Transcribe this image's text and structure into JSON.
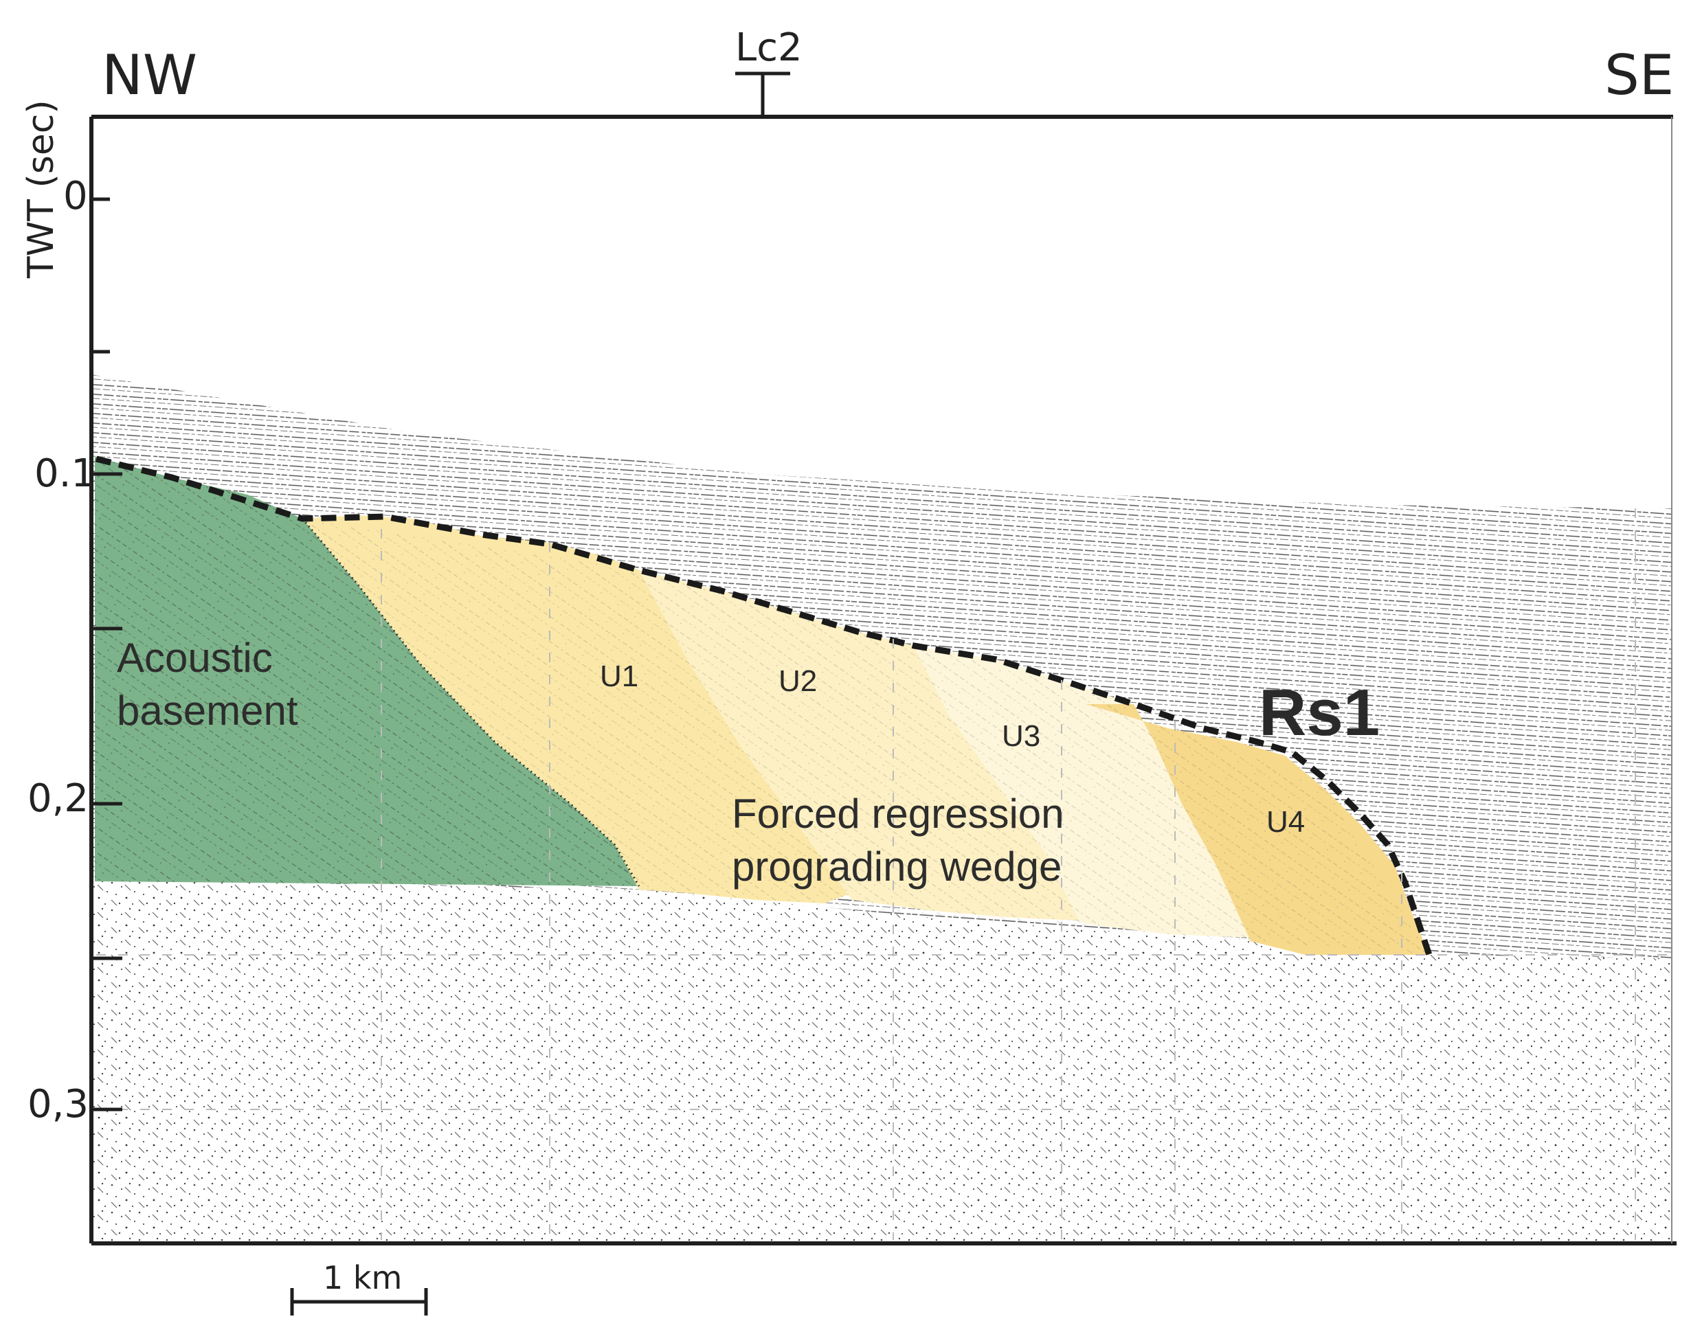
{
  "header": {
    "left_direction": "NW",
    "right_direction": "SE",
    "marker_label": "Lc2"
  },
  "axis": {
    "title": "TWT (sec)",
    "ticks": [
      "0",
      "0.1",
      "0,2",
      "0,3"
    ]
  },
  "units": {
    "basement": "Acoustic\nbasement",
    "basement_line1": "Acoustic",
    "basement_line2": "basement",
    "u1": "U1",
    "u2": "U2",
    "u3": "U3",
    "u4": "U4"
  },
  "wedge_label": {
    "line1": "Forced regression",
    "line2": "prograding wedge"
  },
  "surface_label": "Rs1",
  "scale_bar": {
    "label": "1 km"
  },
  "colors": {
    "basement": "#7cb38a",
    "u1": "#fbe8a8",
    "u2": "#fdf0c4",
    "u3": "#fef6da",
    "u4": "#f7d98c",
    "water": "#ffffff",
    "ink": "#222222"
  }
}
